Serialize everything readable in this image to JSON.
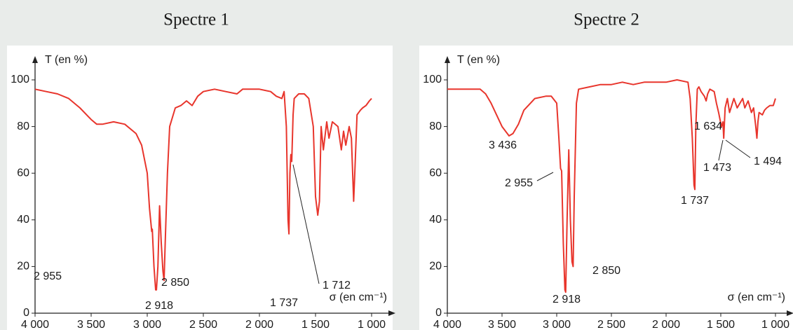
{
  "chart_data": [
    {
      "type": "line",
      "title": "Spectre 1",
      "ylabel": "T (en %)",
      "xlabel": "σ (en cm⁻¹)",
      "color": "#e8352c",
      "xlim": [
        4000,
        1000
      ],
      "ylim": [
        0,
        100
      ],
      "xticks": [
        {
          "value": 4000,
          "label": "4 000"
        },
        {
          "value": 3500,
          "label": "3 500"
        },
        {
          "value": 3000,
          "label": "3 000"
        },
        {
          "value": 2500,
          "label": "2 500"
        },
        {
          "value": 2000,
          "label": "2 000"
        },
        {
          "value": 1500,
          "label": "1 500"
        },
        {
          "value": 1000,
          "label": "1 000"
        }
      ],
      "yticks": [
        0,
        20,
        40,
        60,
        80,
        100
      ],
      "annotations": [
        "2 955",
        "2 850",
        "2 918",
        "1 737",
        "1 712"
      ],
      "x": [
        4000,
        3900,
        3800,
        3700,
        3600,
        3500,
        3450,
        3400,
        3300,
        3200,
        3100,
        3050,
        3000,
        2980,
        2960,
        2955,
        2940,
        2925,
        2918,
        2905,
        2890,
        2875,
        2860,
        2850,
        2840,
        2820,
        2800,
        2750,
        2700,
        2650,
        2600,
        2550,
        2500,
        2400,
        2300,
        2200,
        2150,
        2100,
        2000,
        1900,
        1850,
        1800,
        1780,
        1760,
        1745,
        1737,
        1728,
        1720,
        1712,
        1700,
        1690,
        1650,
        1600,
        1560,
        1520,
        1500,
        1480,
        1465,
        1450,
        1430,
        1400,
        1380,
        1350,
        1300,
        1270,
        1250,
        1230,
        1200,
        1180,
        1160,
        1150,
        1130,
        1100,
        1080,
        1050,
        1020,
        1000
      ],
      "values": [
        96,
        95,
        94,
        92,
        88,
        83,
        81,
        81,
        82,
        81,
        77,
        72,
        60,
        45,
        35,
        36,
        20,
        10,
        10,
        20,
        46,
        30,
        18,
        14,
        30,
        60,
        80,
        88,
        89,
        91,
        89,
        93,
        95,
        96,
        95,
        94,
        96,
        96,
        96,
        95,
        93,
        92,
        95,
        80,
        40,
        34,
        60,
        68,
        65,
        85,
        92,
        94,
        94,
        92,
        80,
        50,
        42,
        48,
        80,
        70,
        82,
        75,
        82,
        80,
        70,
        78,
        72,
        80,
        75,
        48,
        60,
        85,
        87,
        88,
        89,
        91,
        92
      ]
    },
    {
      "type": "line",
      "title": "Spectre 2",
      "ylabel": "T (en %)",
      "xlabel": "σ (en cm⁻¹)",
      "color": "#e8352c",
      "xlim": [
        4000,
        1000
      ],
      "ylim": [
        0,
        100
      ],
      "xticks": [
        {
          "value": 4000,
          "label": "4 000"
        },
        {
          "value": 3500,
          "label": "3 500"
        },
        {
          "value": 3000,
          "label": "3 000"
        },
        {
          "value": 2500,
          "label": "2 500"
        },
        {
          "value": 2000,
          "label": "2 000"
        },
        {
          "value": 1500,
          "label": "1 500"
        },
        {
          "value": 1000,
          "label": "1 000"
        }
      ],
      "yticks": [
        0,
        20,
        40,
        60,
        80,
        100
      ],
      "annotations": [
        "3 436",
        "2 955",
        "2 918",
        "2 850",
        "1 737",
        "1 634",
        "1 473",
        "1 494"
      ],
      "x": [
        4000,
        3800,
        3700,
        3650,
        3600,
        3550,
        3500,
        3436,
        3400,
        3350,
        3300,
        3200,
        3100,
        3050,
        3000,
        2980,
        2965,
        2955,
        2940,
        2925,
        2918,
        2905,
        2890,
        2875,
        2860,
        2850,
        2840,
        2820,
        2800,
        2700,
        2600,
        2500,
        2400,
        2300,
        2200,
        2100,
        2000,
        1900,
        1800,
        1780,
        1760,
        1745,
        1737,
        1728,
        1715,
        1700,
        1680,
        1650,
        1634,
        1620,
        1600,
        1560,
        1540,
        1520,
        1494,
        1480,
        1473,
        1460,
        1440,
        1420,
        1400,
        1380,
        1350,
        1300,
        1280,
        1250,
        1220,
        1200,
        1180,
        1170,
        1160,
        1150,
        1120,
        1100,
        1080,
        1050,
        1020,
        1000
      ],
      "values": [
        96,
        96,
        96,
        94,
        90,
        85,
        80,
        76,
        77,
        81,
        87,
        92,
        93,
        93,
        90,
        75,
        62,
        61,
        30,
        10,
        9,
        40,
        70,
        40,
        22,
        20,
        50,
        90,
        96,
        97,
        98,
        98,
        99,
        98,
        99,
        99,
        99,
        100,
        99,
        92,
        75,
        55,
        53,
        80,
        96,
        97,
        95,
        93,
        91,
        94,
        96,
        95,
        90,
        86,
        80,
        82,
        75,
        88,
        92,
        86,
        89,
        92,
        88,
        92,
        88,
        91,
        86,
        88,
        80,
        75,
        82,
        86,
        85,
        87,
        88,
        89,
        89,
        92
      ]
    }
  ]
}
